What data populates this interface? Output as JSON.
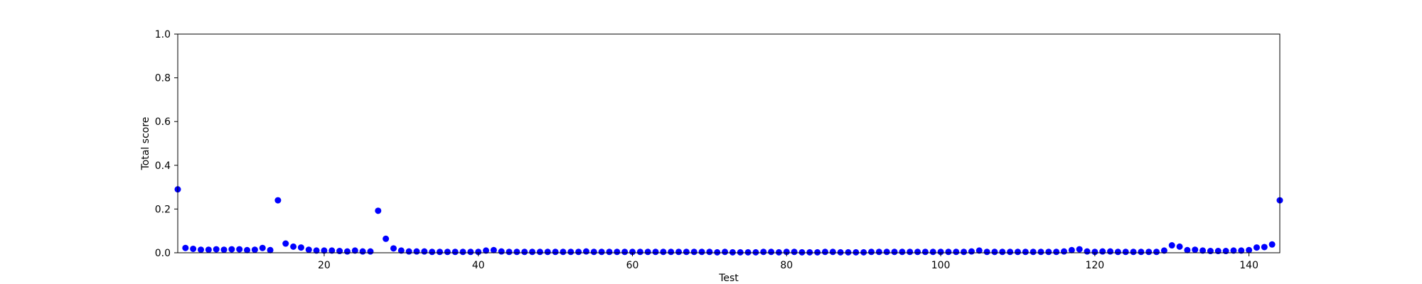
{
  "chart_data": {
    "type": "scatter",
    "xlabel": "Test",
    "ylabel": "Total score",
    "xlim": [
      1,
      144
    ],
    "ylim": [
      0,
      1.0
    ],
    "x_ticks": [
      20,
      40,
      60,
      80,
      100,
      120,
      140
    ],
    "y_ticks": [
      0.0,
      0.2,
      0.4,
      0.6,
      0.8,
      1.0
    ],
    "x_tick_labels": [
      "20",
      "40",
      "60",
      "80",
      "100",
      "120",
      "140"
    ],
    "y_tick_labels": [
      "0.0",
      "0.2",
      "0.4",
      "0.6",
      "0.8",
      "1.0"
    ],
    "grid": false,
    "marker_color": "#0000ff",
    "x": [
      1,
      2,
      3,
      4,
      5,
      6,
      7,
      8,
      9,
      10,
      11,
      12,
      13,
      14,
      15,
      16,
      17,
      18,
      19,
      20,
      21,
      22,
      23,
      24,
      25,
      26,
      27,
      28,
      29,
      30,
      31,
      32,
      33,
      34,
      35,
      36,
      37,
      38,
      39,
      40,
      41,
      42,
      43,
      44,
      45,
      46,
      47,
      48,
      49,
      50,
      51,
      52,
      53,
      54,
      55,
      56,
      57,
      58,
      59,
      60,
      61,
      62,
      63,
      64,
      65,
      66,
      67,
      68,
      69,
      70,
      71,
      72,
      73,
      74,
      75,
      76,
      77,
      78,
      79,
      80,
      81,
      82,
      83,
      84,
      85,
      86,
      87,
      88,
      89,
      90,
      91,
      92,
      93,
      94,
      95,
      96,
      97,
      98,
      99,
      100,
      101,
      102,
      103,
      104,
      105,
      106,
      107,
      108,
      109,
      110,
      111,
      112,
      113,
      114,
      115,
      116,
      117,
      118,
      119,
      120,
      121,
      122,
      123,
      124,
      125,
      126,
      127,
      128,
      129,
      130,
      131,
      132,
      133,
      134,
      135,
      136,
      137,
      138,
      139,
      140,
      141,
      142,
      143,
      144
    ],
    "y": [
      0.29,
      0.022,
      0.018,
      0.014,
      0.014,
      0.016,
      0.014,
      0.016,
      0.016,
      0.012,
      0.014,
      0.022,
      0.012,
      0.24,
      0.042,
      0.028,
      0.024,
      0.014,
      0.01,
      0.01,
      0.01,
      0.008,
      0.006,
      0.01,
      0.006,
      0.006,
      0.192,
      0.064,
      0.02,
      0.01,
      0.006,
      0.006,
      0.006,
      0.004,
      0.004,
      0.004,
      0.004,
      0.004,
      0.004,
      0.004,
      0.01,
      0.012,
      0.006,
      0.004,
      0.004,
      0.004,
      0.004,
      0.004,
      0.004,
      0.004,
      0.004,
      0.004,
      0.004,
      0.006,
      0.004,
      0.004,
      0.004,
      0.004,
      0.004,
      0.004,
      0.004,
      0.004,
      0.004,
      0.004,
      0.004,
      0.004,
      0.004,
      0.004,
      0.004,
      0.004,
      0.002,
      0.004,
      0.002,
      0.002,
      0.002,
      0.002,
      0.004,
      0.004,
      0.002,
      0.004,
      0.004,
      0.002,
      0.002,
      0.002,
      0.004,
      0.004,
      0.002,
      0.002,
      0.002,
      0.002,
      0.004,
      0.004,
      0.004,
      0.004,
      0.004,
      0.004,
      0.004,
      0.004,
      0.004,
      0.004,
      0.004,
      0.004,
      0.004,
      0.006,
      0.01,
      0.004,
      0.004,
      0.004,
      0.004,
      0.004,
      0.004,
      0.004,
      0.004,
      0.004,
      0.004,
      0.006,
      0.012,
      0.016,
      0.006,
      0.004,
      0.006,
      0.006,
      0.004,
      0.004,
      0.004,
      0.004,
      0.004,
      0.004,
      0.01,
      0.034,
      0.028,
      0.012,
      0.014,
      0.01,
      0.008,
      0.008,
      0.008,
      0.01,
      0.01,
      0.012,
      0.024,
      0.026,
      0.038,
      0.24
    ]
  }
}
